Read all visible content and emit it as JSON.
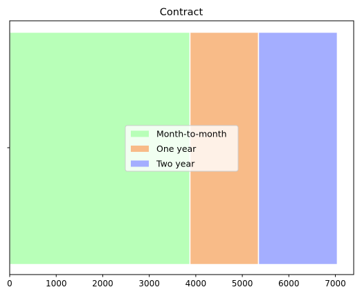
{
  "chart_data": {
    "type": "bar",
    "orientation": "horizontal",
    "stacked": true,
    "title": "Contract",
    "xlabel": "",
    "ylabel": "",
    "categories": [
      ""
    ],
    "xlim": [
      0,
      7394
    ],
    "x_ticks": [
      0,
      1000,
      2000,
      3000,
      4000,
      5000,
      6000,
      7000
    ],
    "grid": false,
    "legend_position": "center",
    "series": [
      {
        "name": "Month-to-month",
        "values": [
          3875
        ],
        "color": "#b8ffb8"
      },
      {
        "name": "One year",
        "values": [
          1473
        ],
        "color": "#f8bb88"
      },
      {
        "name": "Two year",
        "values": [
          1695
        ],
        "color": "#a4aeff"
      }
    ]
  }
}
